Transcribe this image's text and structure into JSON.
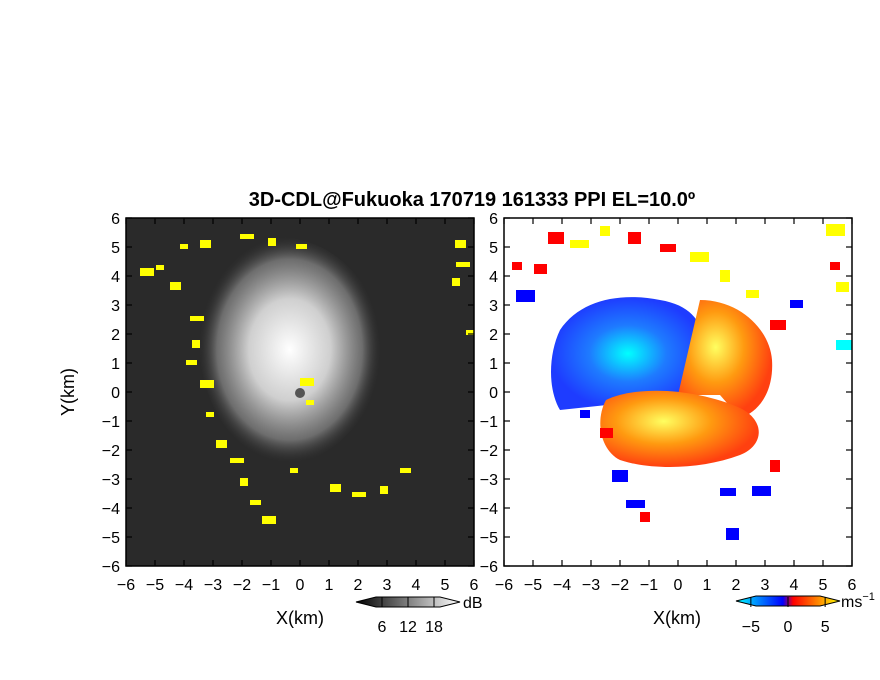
{
  "title": "3D-CDL@Fukuoka 170719 161333 PPI EL=10.0º",
  "chart_data": [
    {
      "type": "heatmap",
      "panel": "reflectivity",
      "xlabel": "X(km)",
      "ylabel": "Y(km)",
      "xlim": [
        -6,
        6
      ],
      "ylim": [
        -6,
        6
      ],
      "xticks": [
        "−6",
        "−5",
        "−4",
        "−3",
        "−2",
        "−1",
        "0",
        "1",
        "2",
        "3",
        "4",
        "5",
        "6"
      ],
      "yticks": [
        "6",
        "5",
        "4",
        "3",
        "2",
        "1",
        "0",
        "−1",
        "−2",
        "−3",
        "−4",
        "−5",
        "−6"
      ],
      "colorbar": {
        "unit": "dB",
        "ticks": [
          "6",
          "12",
          "18"
        ],
        "range": [
          0,
          24
        ],
        "colors": [
          "#000000",
          "#ffffff"
        ]
      },
      "highlight_color": "#ffff00",
      "grid": false
    },
    {
      "type": "heatmap",
      "panel": "doppler-velocity",
      "xlabel": "X(km)",
      "xlim": [
        -6,
        6
      ],
      "ylim": [
        -6,
        6
      ],
      "xticks": [
        "−6",
        "−5",
        "−4",
        "−3",
        "−2",
        "−1",
        "0",
        "1",
        "2",
        "3",
        "4",
        "5",
        "6"
      ],
      "yticks": [
        "6",
        "5",
        "4",
        "3",
        "2",
        "1",
        "0",
        "−1",
        "−2",
        "−3",
        "−4",
        "−5",
        "−6"
      ],
      "colorbar": {
        "unit": "ms",
        "unit_exponent": "−1",
        "ticks": [
          "−5",
          "0",
          "5"
        ],
        "range": [
          -7,
          7
        ],
        "colors": [
          "#00ffff",
          "#0000ff",
          "#ff0000",
          "#ffff00"
        ]
      },
      "grid": false
    }
  ]
}
